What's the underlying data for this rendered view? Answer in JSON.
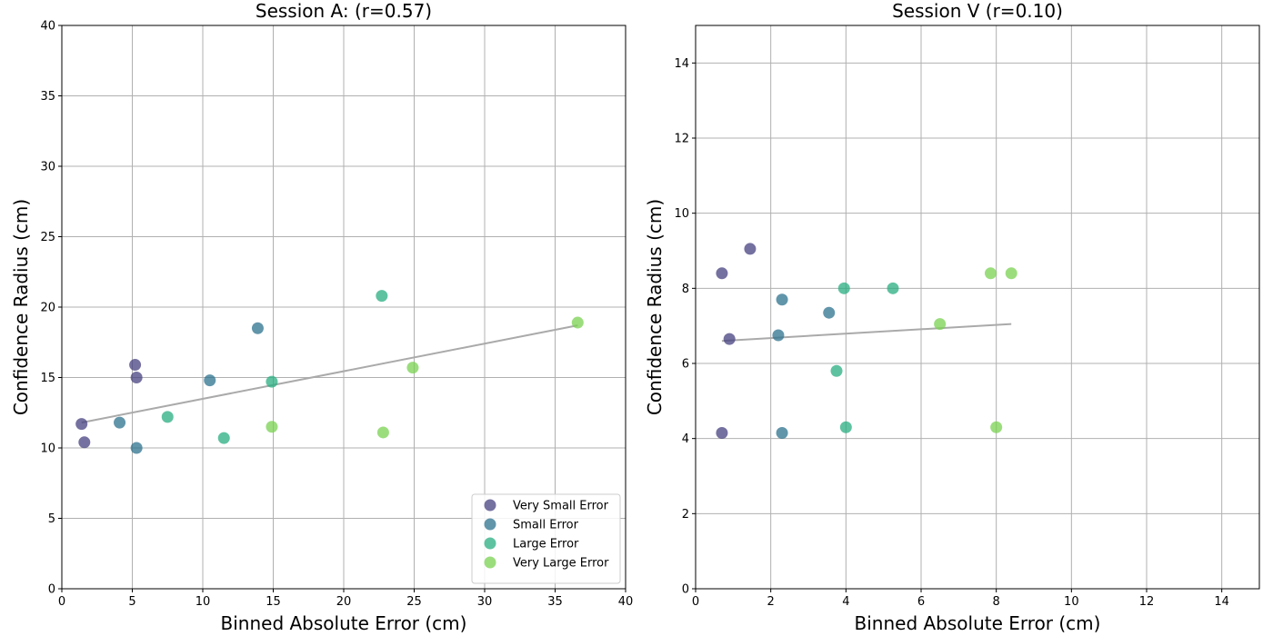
{
  "chart_data": [
    {
      "type": "scatter",
      "title": "Session A: (r=0.57)",
      "xlabel": "Binned Absolute Error (cm)",
      "ylabel": "Confidence Radius (cm)",
      "xlim": [
        0,
        40
      ],
      "ylim": [
        0,
        40
      ],
      "xticks": [
        0,
        5,
        10,
        15,
        20,
        25,
        30,
        35,
        40
      ],
      "yticks": [
        0,
        5,
        10,
        15,
        20,
        25,
        30,
        35,
        40
      ],
      "grid": true,
      "legend_position": "lower-right",
      "series": [
        {
          "name": "Very Small Error",
          "color": "#46407f",
          "points": [
            [
              1.4,
              11.7
            ],
            [
              1.6,
              10.4
            ],
            [
              5.2,
              15.9
            ],
            [
              5.3,
              15.0
            ]
          ]
        },
        {
          "name": "Small Error",
          "color": "#2c728e",
          "points": [
            [
              4.1,
              11.8
            ],
            [
              5.3,
              10.0
            ],
            [
              10.5,
              14.8
            ],
            [
              13.9,
              18.5
            ]
          ]
        },
        {
          "name": "Large Error",
          "color": "#28ae80",
          "points": [
            [
              7.5,
              12.2
            ],
            [
              11.5,
              10.7
            ],
            [
              14.9,
              14.7
            ],
            [
              22.7,
              20.8
            ]
          ]
        },
        {
          "name": "Very Large Error",
          "color": "#7ad151",
          "points": [
            [
              14.9,
              11.5
            ],
            [
              22.8,
              11.1
            ],
            [
              24.9,
              15.7
            ],
            [
              36.6,
              18.9
            ]
          ]
        }
      ],
      "trend_line": {
        "color": "#aaaaaa",
        "x": [
          1.4,
          36.6
        ],
        "y": [
          11.8,
          18.7
        ]
      }
    },
    {
      "type": "scatter",
      "title": "Session V (r=0.10)",
      "xlabel": "Binned Absolute Error (cm)",
      "ylabel": "Confidence Radius (cm)",
      "xlim": [
        0,
        15
      ],
      "ylim": [
        0,
        15
      ],
      "xticks": [
        0,
        2,
        4,
        6,
        8,
        10,
        12,
        14
      ],
      "yticks": [
        0,
        2,
        4,
        6,
        8,
        10,
        12,
        14
      ],
      "grid": true,
      "series": [
        {
          "name": "Very Small Error",
          "color": "#46407f",
          "points": [
            [
              0.7,
              8.4
            ],
            [
              0.7,
              4.15
            ],
            [
              0.9,
              6.65
            ],
            [
              1.45,
              9.05
            ]
          ]
        },
        {
          "name": "Small Error",
          "color": "#2c728e",
          "points": [
            [
              2.2,
              6.75
            ],
            [
              2.3,
              7.7
            ],
            [
              2.3,
              4.15
            ],
            [
              3.55,
              7.35
            ]
          ]
        },
        {
          "name": "Large Error",
          "color": "#28ae80",
          "points": [
            [
              3.75,
              5.8
            ],
            [
              3.95,
              8.0
            ],
            [
              4.0,
              4.3
            ],
            [
              5.25,
              8.0
            ]
          ]
        },
        {
          "name": "Very Large Error",
          "color": "#7ad151",
          "points": [
            [
              6.5,
              7.05
            ],
            [
              7.85,
              8.4
            ],
            [
              8.0,
              4.3
            ],
            [
              8.4,
              8.4
            ]
          ]
        }
      ],
      "trend_line": {
        "color": "#aaaaaa",
        "x": [
          0.7,
          8.4
        ],
        "y": [
          6.6,
          7.05
        ]
      }
    }
  ]
}
